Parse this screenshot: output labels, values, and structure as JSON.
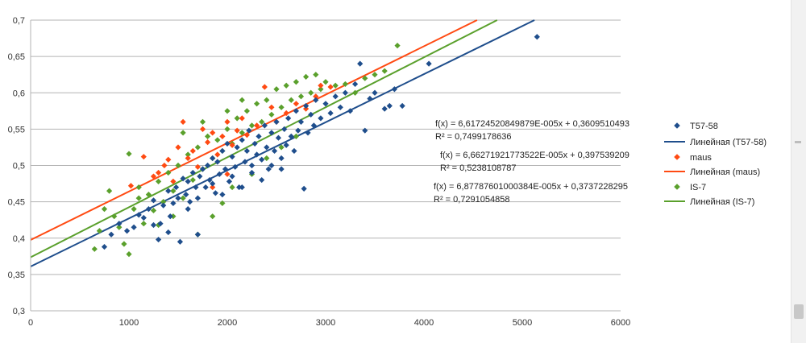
{
  "chart_data": {
    "type": "scatter",
    "xlim": [
      0,
      6000
    ],
    "ylim": [
      0.3,
      0.7
    ],
    "x_ticks": [
      "0",
      "1000",
      "2000",
      "3000",
      "4000",
      "5000",
      "6000"
    ],
    "y_ticks": [
      "0,3",
      "0,35",
      "0,4",
      "0,45",
      "0,5",
      "0,55",
      "0,6",
      "0,65",
      "0,7"
    ],
    "grid": "horizontal",
    "legend_position": "right",
    "series": [
      {
        "name": "T57-58",
        "color": "#1f4e8c",
        "marker": "diamond",
        "trend_label": "Линейная (T57-58)",
        "trend": {
          "slope": 6.61724520849879e-05,
          "intercept": 0.3609510493
        },
        "equation": "f(x) = 6,61724520849879E-005x + 0,3609510493",
        "r2": "R² = 0,7499178636",
        "points": [
          [
            750,
            0.388
          ],
          [
            820,
            0.405
          ],
          [
            900,
            0.42
          ],
          [
            980,
            0.41
          ],
          [
            1050,
            0.415
          ],
          [
            1100,
            0.432
          ],
          [
            1150,
            0.428
          ],
          [
            1200,
            0.44
          ],
          [
            1250,
            0.452
          ],
          [
            1300,
            0.398
          ],
          [
            1320,
            0.42
          ],
          [
            1350,
            0.445
          ],
          [
            1400,
            0.465
          ],
          [
            1420,
            0.43
          ],
          [
            1450,
            0.448
          ],
          [
            1480,
            0.47
          ],
          [
            1500,
            0.455
          ],
          [
            1520,
            0.395
          ],
          [
            1550,
            0.482
          ],
          [
            1580,
            0.46
          ],
          [
            1600,
            0.478
          ],
          [
            1620,
            0.45
          ],
          [
            1650,
            0.49
          ],
          [
            1680,
            0.47
          ],
          [
            1700,
            0.405
          ],
          [
            1720,
            0.485
          ],
          [
            1750,
            0.495
          ],
          [
            1780,
            0.47
          ],
          [
            1800,
            0.5
          ],
          [
            1820,
            0.48
          ],
          [
            1850,
            0.51
          ],
          [
            1880,
            0.462
          ],
          [
            1900,
            0.505
          ],
          [
            1920,
            0.488
          ],
          [
            1950,
            0.52
          ],
          [
            1980,
            0.495
          ],
          [
            2000,
            0.53
          ],
          [
            2020,
            0.478
          ],
          [
            2050,
            0.512
          ],
          [
            2080,
            0.498
          ],
          [
            2100,
            0.525
          ],
          [
            2120,
            0.47
          ],
          [
            2150,
            0.535
          ],
          [
            2180,
            0.505
          ],
          [
            2200,
            0.52
          ],
          [
            2220,
            0.548
          ],
          [
            2250,
            0.5
          ],
          [
            2280,
            0.53
          ],
          [
            2300,
            0.515
          ],
          [
            2320,
            0.54
          ],
          [
            2350,
            0.508
          ],
          [
            2380,
            0.555
          ],
          [
            2400,
            0.525
          ],
          [
            2420,
            0.495
          ],
          [
            2450,
            0.545
          ],
          [
            2480,
            0.52
          ],
          [
            2500,
            0.56
          ],
          [
            2520,
            0.538
          ],
          [
            2550,
            0.51
          ],
          [
            2580,
            0.55
          ],
          [
            2600,
            0.528
          ],
          [
            2620,
            0.565
          ],
          [
            2650,
            0.54
          ],
          [
            2680,
            0.52
          ],
          [
            2700,
            0.575
          ],
          [
            2720,
            0.548
          ],
          [
            2750,
            0.56
          ],
          [
            2780,
            0.468
          ],
          [
            2800,
            0.582
          ],
          [
            2820,
            0.545
          ],
          [
            2850,
            0.57
          ],
          [
            2880,
            0.555
          ],
          [
            2900,
            0.59
          ],
          [
            2950,
            0.565
          ],
          [
            3000,
            0.585
          ],
          [
            3050,
            0.572
          ],
          [
            3100,
            0.595
          ],
          [
            3150,
            0.58
          ],
          [
            3200,
            0.6
          ],
          [
            3250,
            0.575
          ],
          [
            3300,
            0.612
          ],
          [
            3350,
            0.64
          ],
          [
            3400,
            0.548
          ],
          [
            3450,
            0.592
          ],
          [
            3500,
            0.6
          ],
          [
            3600,
            0.578
          ],
          [
            3650,
            0.582
          ],
          [
            3700,
            0.605
          ],
          [
            3780,
            0.582
          ],
          [
            4050,
            0.64
          ],
          [
            5150,
            0.677
          ],
          [
            1600,
            0.44
          ],
          [
            1700,
            0.455
          ],
          [
            1850,
            0.475
          ],
          [
            1950,
            0.46
          ],
          [
            2050,
            0.485
          ],
          [
            2150,
            0.47
          ],
          [
            2250,
            0.49
          ],
          [
            2350,
            0.48
          ],
          [
            2450,
            0.5
          ],
          [
            2550,
            0.495
          ],
          [
            1400,
            0.408
          ],
          [
            1250,
            0.418
          ]
        ]
      },
      {
        "name": "maus",
        "color": "#ff4a12",
        "marker": "diamond",
        "trend_label": "Линейная (maus)",
        "trend": {
          "slope": 6.66271921773522e-05,
          "intercept": 0.397539209
        },
        "equation": "f(x) = 6,66271921773522E-005x + 0,397539209",
        "r2": "R² = 0,5238108787",
        "points": [
          [
            1020,
            0.472
          ],
          [
            1150,
            0.512
          ],
          [
            1250,
            0.485
          ],
          [
            1300,
            0.49
          ],
          [
            1360,
            0.5
          ],
          [
            1400,
            0.508
          ],
          [
            1450,
            0.478
          ],
          [
            1500,
            0.525
          ],
          [
            1550,
            0.56
          ],
          [
            1600,
            0.51
          ],
          [
            1650,
            0.52
          ],
          [
            1700,
            0.498
          ],
          [
            1750,
            0.55
          ],
          [
            1800,
            0.532
          ],
          [
            1850,
            0.545
          ],
          [
            1900,
            0.515
          ],
          [
            1950,
            0.54
          ],
          [
            2000,
            0.56
          ],
          [
            2050,
            0.528
          ],
          [
            2100,
            0.548
          ],
          [
            2150,
            0.565
          ],
          [
            2200,
            0.542
          ],
          [
            2300,
            0.555
          ],
          [
            2380,
            0.608
          ],
          [
            2450,
            0.58
          ],
          [
            2500,
            0.56
          ],
          [
            2600,
            0.572
          ],
          [
            2700,
            0.585
          ],
          [
            2800,
            0.578
          ],
          [
            2900,
            0.595
          ],
          [
            2950,
            0.61
          ],
          [
            3050,
            0.608
          ],
          [
            1850,
            0.47
          ],
          [
            2000,
            0.488
          ]
        ]
      },
      {
        "name": "IS-7",
        "color": "#5aa02c",
        "marker": "diamond",
        "trend_label": "Линейная (IS-7)",
        "trend": {
          "slope": 6.87787601000384e-05,
          "intercept": 0.3737228295
        },
        "equation": "f(x) = 6,87787601000384E-005x + 0,3737228295",
        "r2": "R² = 0,7291054858",
        "points": [
          [
            650,
            0.385
          ],
          [
            700,
            0.41
          ],
          [
            750,
            0.44
          ],
          [
            800,
            0.465
          ],
          [
            850,
            0.43
          ],
          [
            900,
            0.415
          ],
          [
            950,
            0.392
          ],
          [
            1000,
            0.378
          ],
          [
            1000,
            0.516
          ],
          [
            1050,
            0.44
          ],
          [
            1100,
            0.455
          ],
          [
            1150,
            0.42
          ],
          [
            1200,
            0.46
          ],
          [
            1250,
            0.438
          ],
          [
            1300,
            0.478
          ],
          [
            1350,
            0.45
          ],
          [
            1400,
            0.49
          ],
          [
            1450,
            0.465
          ],
          [
            1500,
            0.5
          ],
          [
            1550,
            0.455
          ],
          [
            1600,
            0.515
          ],
          [
            1650,
            0.48
          ],
          [
            1700,
            0.525
          ],
          [
            1750,
            0.495
          ],
          [
            1800,
            0.54
          ],
          [
            1850,
            0.51
          ],
          [
            1900,
            0.535
          ],
          [
            1950,
            0.52
          ],
          [
            2000,
            0.55
          ],
          [
            2050,
            0.53
          ],
          [
            2100,
            0.565
          ],
          [
            2150,
            0.545
          ],
          [
            2200,
            0.575
          ],
          [
            2250,
            0.555
          ],
          [
            2300,
            0.585
          ],
          [
            2350,
            0.56
          ],
          [
            2400,
            0.59
          ],
          [
            2450,
            0.57
          ],
          [
            2500,
            0.605
          ],
          [
            2550,
            0.58
          ],
          [
            2600,
            0.61
          ],
          [
            2650,
            0.59
          ],
          [
            2700,
            0.615
          ],
          [
            2750,
            0.595
          ],
          [
            2800,
            0.622
          ],
          [
            2850,
            0.6
          ],
          [
            2900,
            0.625
          ],
          [
            2950,
            0.605
          ],
          [
            3000,
            0.615
          ],
          [
            3100,
            0.61
          ],
          [
            3200,
            0.612
          ],
          [
            3300,
            0.6
          ],
          [
            3400,
            0.62
          ],
          [
            3500,
            0.625
          ],
          [
            3600,
            0.63
          ],
          [
            3730,
            0.665
          ],
          [
            1700,
            0.405
          ],
          [
            1850,
            0.43
          ],
          [
            1950,
            0.448
          ],
          [
            2050,
            0.47
          ],
          [
            2250,
            0.488
          ],
          [
            2400,
            0.51
          ],
          [
            2550,
            0.525
          ],
          [
            2700,
            0.54
          ],
          [
            1300,
            0.418
          ],
          [
            1450,
            0.43
          ],
          [
            1100,
            0.47
          ],
          [
            1550,
            0.545
          ],
          [
            1750,
            0.56
          ],
          [
            2000,
            0.575
          ],
          [
            2150,
            0.59
          ]
        ]
      }
    ]
  }
}
